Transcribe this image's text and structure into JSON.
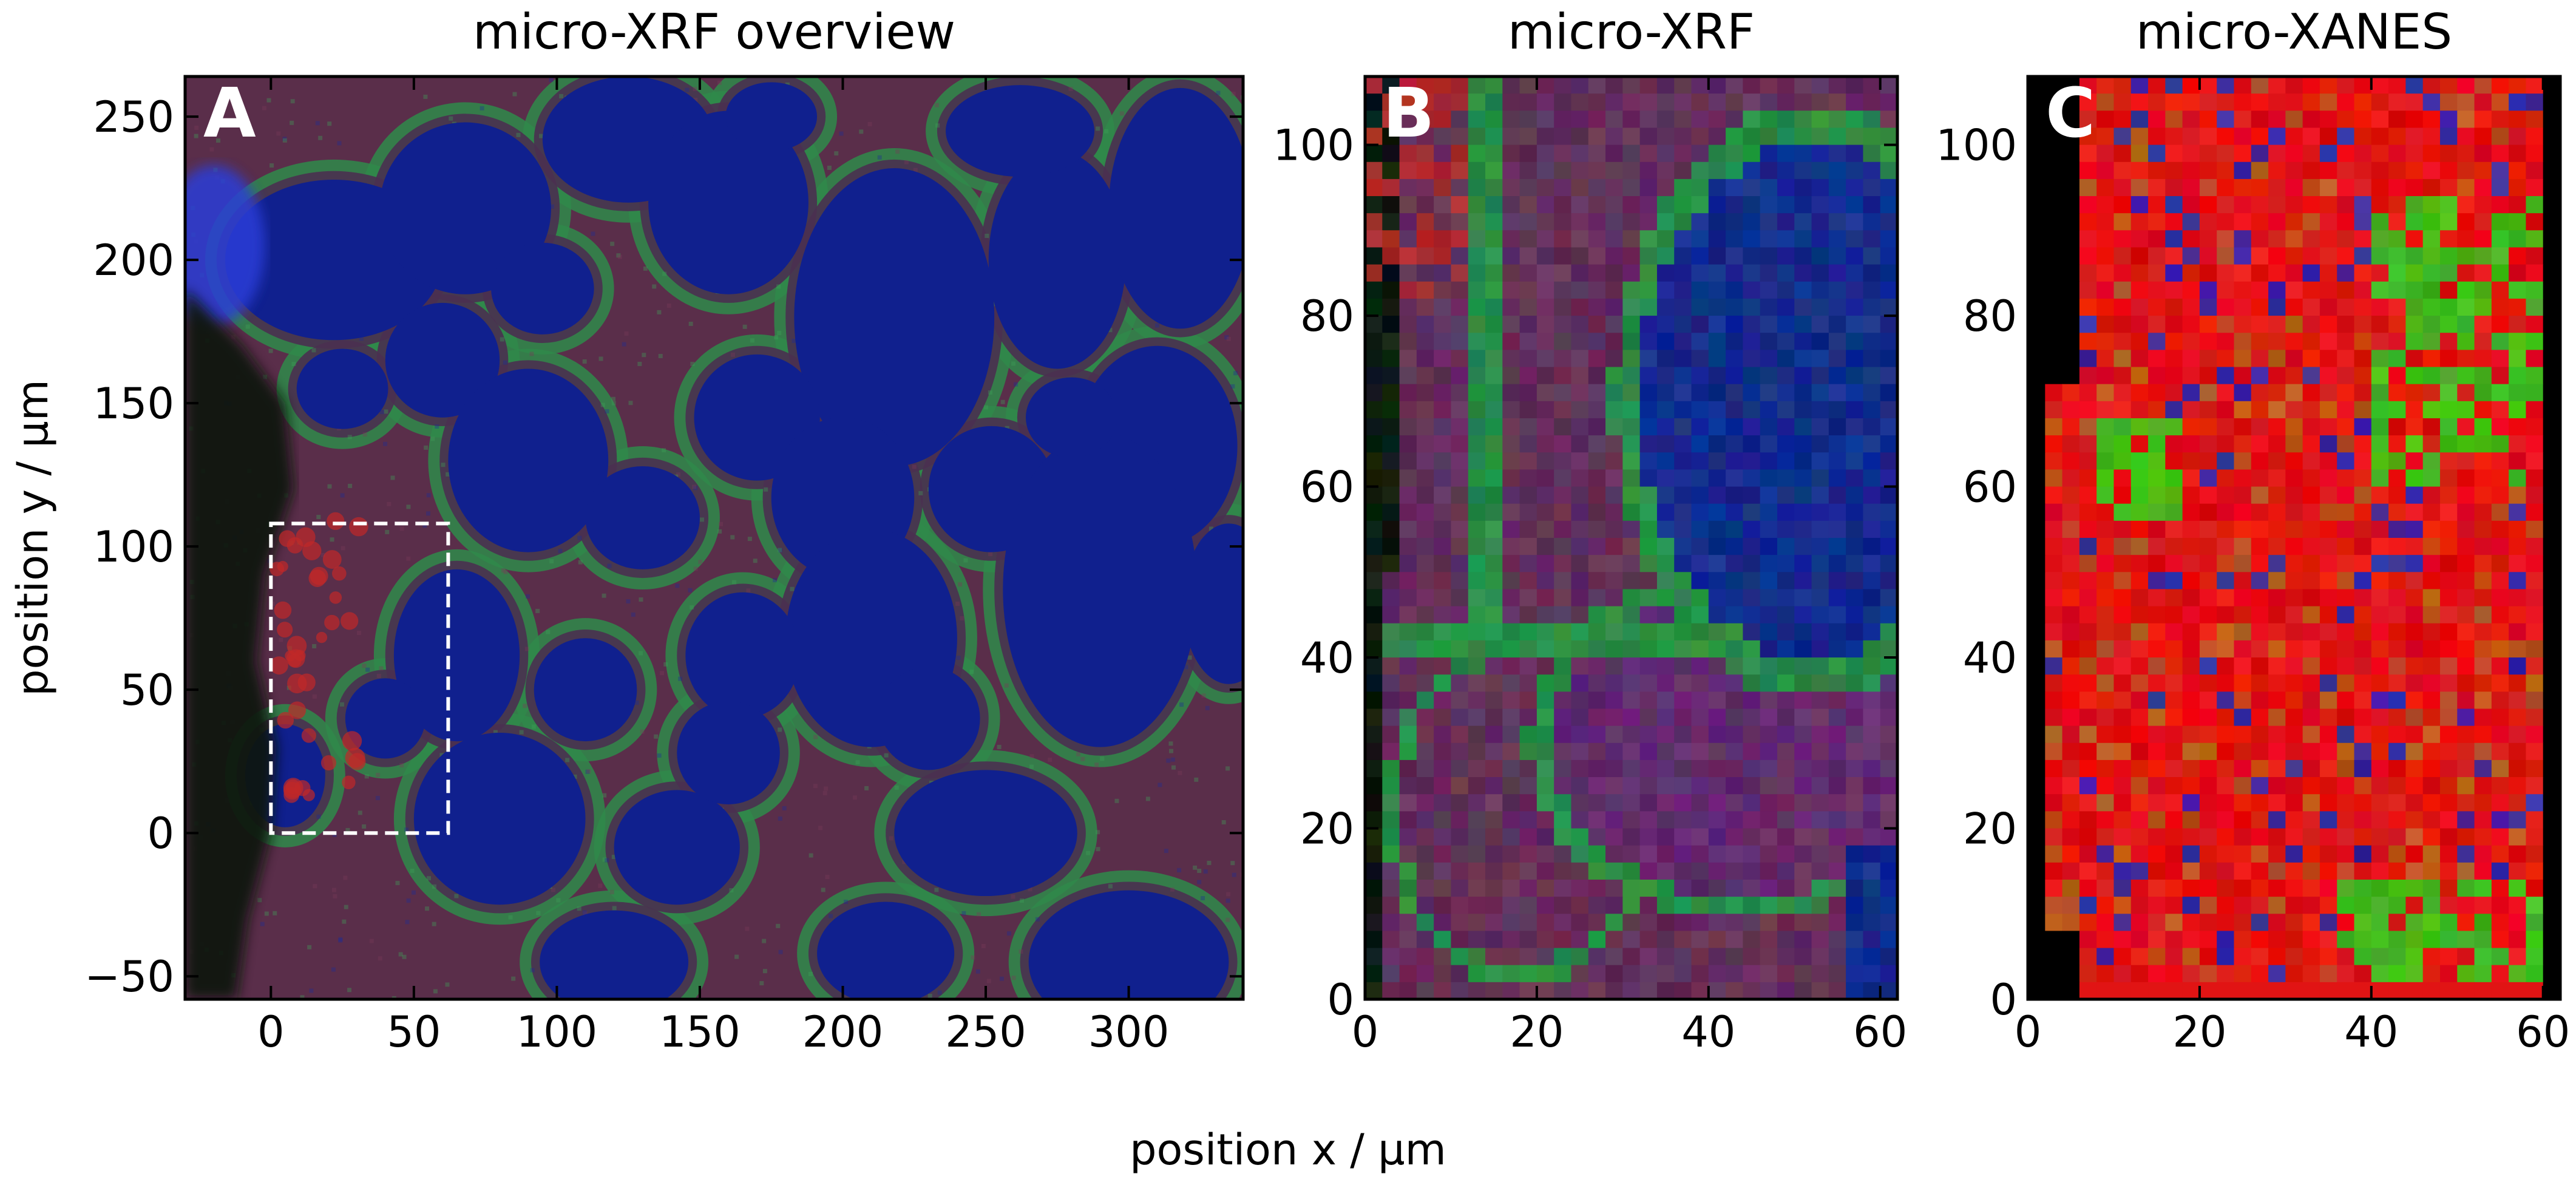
{
  "chart_data": [
    {
      "type": "heatmap",
      "panel_label": "A",
      "title": "micro-XRF overview",
      "xlim": [
        -30,
        340
      ],
      "ylim": [
        -58,
        264
      ],
      "xticks": [
        0,
        50,
        100,
        150,
        200,
        250,
        300
      ],
      "xtick_labels": [
        "0",
        "50",
        "100",
        "150",
        "200",
        "250",
        "300"
      ],
      "yticks": [
        -50,
        0,
        50,
        100,
        150,
        200,
        250
      ],
      "ytick_labels": [
        "−50",
        "0",
        "50",
        "100",
        "150",
        "200",
        "250"
      ],
      "ylabel": "position y / µm",
      "region_of_interest": {
        "x": [
          0,
          62
        ],
        "y": [
          0,
          108
        ]
      },
      "colors": {
        "background": "#5a2e4a",
        "membrane": "#2f8a4a",
        "nucleus": "#10208e",
        "exterior": "#0c140e",
        "bright_red": "#c02828"
      },
      "nuclei": [
        [
          22,
          200,
          38,
          28
        ],
        [
          68,
          218,
          30,
          30
        ],
        [
          125,
          242,
          30,
          22
        ],
        [
          160,
          220,
          28,
          32
        ],
        [
          218,
          180,
          35,
          52
        ],
        [
          275,
          200,
          24,
          38
        ],
        [
          318,
          218,
          25,
          42
        ],
        [
          262,
          245,
          26,
          16
        ],
        [
          60,
          165,
          20,
          20
        ],
        [
          95,
          190,
          18,
          16
        ],
        [
          90,
          130,
          28,
          32
        ],
        [
          170,
          145,
          22,
          22
        ],
        [
          130,
          110,
          20,
          18
        ],
        [
          200,
          117,
          25,
          28
        ],
        [
          252,
          120,
          22,
          22
        ],
        [
          310,
          135,
          28,
          35
        ],
        [
          210,
          68,
          30,
          38
        ],
        [
          290,
          85,
          34,
          55
        ],
        [
          65,
          62,
          22,
          30
        ],
        [
          110,
          50,
          18,
          18
        ],
        [
          165,
          62,
          20,
          22
        ],
        [
          230,
          40,
          18,
          18
        ],
        [
          80,
          5,
          30,
          30
        ],
        [
          142,
          -5,
          22,
          20
        ],
        [
          250,
          0,
          32,
          22
        ],
        [
          300,
          -45,
          35,
          25
        ],
        [
          215,
          -42,
          24,
          18
        ],
        [
          120,
          -45,
          26,
          18
        ],
        [
          160,
          28,
          18,
          18
        ],
        [
          25,
          155,
          16,
          14
        ],
        [
          335,
          80,
          16,
          28
        ],
        [
          40,
          40,
          14,
          14
        ],
        [
          5,
          20,
          14,
          18
        ],
        [
          280,
          145,
          16,
          14
        ],
        [
          175,
          250,
          16,
          12
        ]
      ]
    },
    {
      "type": "heatmap",
      "panel_label": "B",
      "title": "micro-XRF",
      "xlim": [
        0,
        62
      ],
      "ylim": [
        0,
        108
      ],
      "xticks": [
        0,
        20,
        40,
        60
      ],
      "xtick_labels": [
        "0",
        "20",
        "40",
        "60"
      ],
      "yticks": [
        0,
        20,
        40,
        60,
        80,
        100
      ],
      "ytick_labels": [
        "0",
        "20",
        "40",
        "60",
        "80",
        "100"
      ],
      "grid": "pixelated",
      "colors": {
        "background": "#63305a",
        "membrane": "#2b8c48",
        "nucleus": "#132c8c",
        "exterior": "#0d1a12"
      }
    },
    {
      "type": "heatmap",
      "panel_label": "C",
      "title": "micro-XANES",
      "xlim": [
        0,
        62
      ],
      "ylim": [
        0,
        108
      ],
      "xticks": [
        0,
        20,
        40,
        60
      ],
      "xtick_labels": [
        "0",
        "20",
        "40",
        "60"
      ],
      "yticks": [
        0,
        20,
        40,
        60,
        80,
        100
      ],
      "ytick_labels": [
        "0",
        "20",
        "40",
        "60",
        "80",
        "100"
      ],
      "grid": "pixelated",
      "colors": {
        "red": "#e11414",
        "green": "#46b81e",
        "blue": "#3a2aa0",
        "mask": "#000000"
      }
    }
  ],
  "shared": {
    "xlabel": "position x / µm"
  }
}
